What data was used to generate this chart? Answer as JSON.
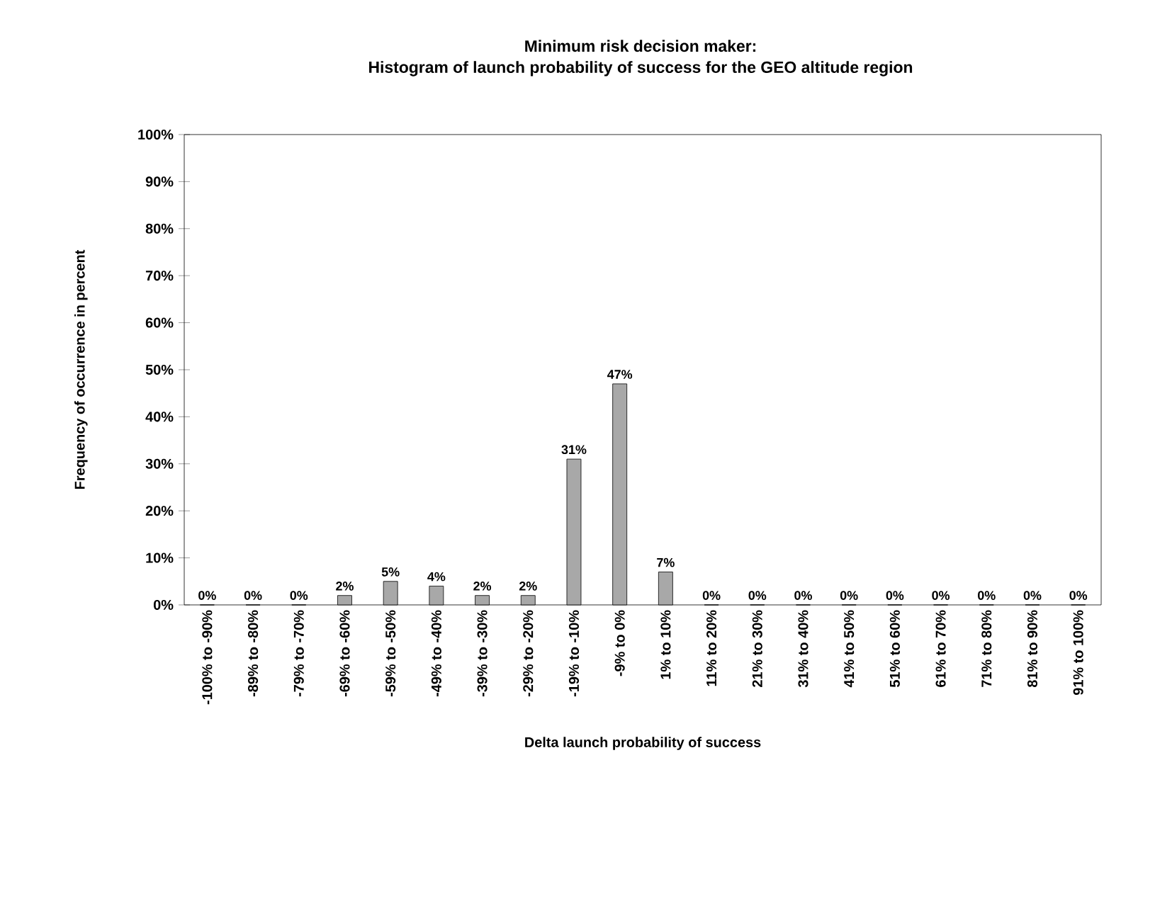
{
  "chart_data": {
    "type": "bar",
    "title": "Minimum risk decision maker:\nHistogram of launch probability of success for the GEO altitude region",
    "xlabel": "Delta launch probability of success",
    "ylabel": "Frequency of occurrence in percent",
    "categories": [
      "-100% to -90%",
      "-89% to -80%",
      "-79% to -70%",
      "-69% to -60%",
      "-59% to -50%",
      "-49% to -40%",
      "-39% to -30%",
      "-29% to -20%",
      "-19% to -10%",
      "-9% to 0%",
      "1% to 10%",
      "11% to 20%",
      "21% to 30%",
      "31% to 40%",
      "41% to 50%",
      "51% to 60%",
      "61% to 70%",
      "71% to 80%",
      "81% to 90%",
      "91% to 100%"
    ],
    "values": [
      0,
      0,
      0,
      2,
      5,
      4,
      2,
      2,
      31,
      47,
      7,
      0,
      0,
      0,
      0,
      0,
      0,
      0,
      0,
      0
    ],
    "value_labels": [
      "0%",
      "0%",
      "0%",
      "2%",
      "5%",
      "4%",
      "2%",
      "2%",
      "31%",
      "47%",
      "7%",
      "0%",
      "0%",
      "0%",
      "0%",
      "0%",
      "0%",
      "0%",
      "0%",
      "0%"
    ],
    "color": "#a8a8a8",
    "ylim": [
      0,
      100
    ],
    "yticks": [
      {
        "value": 0,
        "label": "0%"
      },
      {
        "value": 10,
        "label": "10%"
      },
      {
        "value": 20,
        "label": "20%"
      },
      {
        "value": 30,
        "label": "30%"
      },
      {
        "value": 40,
        "label": "40%"
      },
      {
        "value": 50,
        "label": "50%"
      },
      {
        "value": 60,
        "label": "60%"
      },
      {
        "value": 70,
        "label": "70%"
      },
      {
        "value": 80,
        "label": "80%"
      },
      {
        "value": 90,
        "label": "90%"
      },
      {
        "value": 100,
        "label": "100%"
      }
    ],
    "grid": false
  }
}
